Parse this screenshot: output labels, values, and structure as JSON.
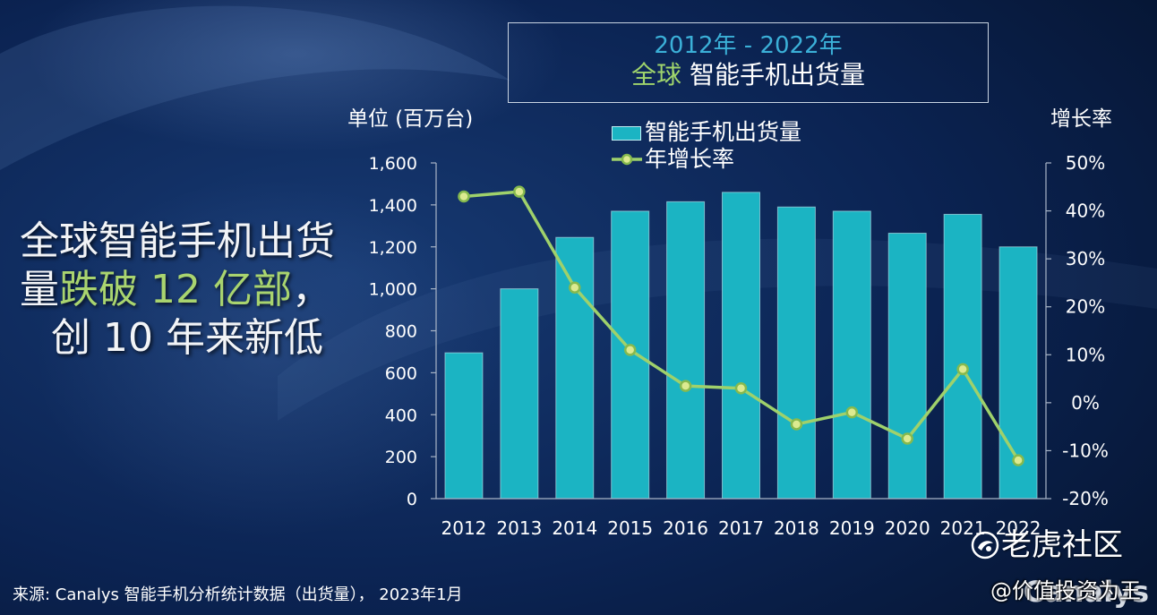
{
  "chart_data": {
    "type": "bar",
    "title": {
      "line1": "2012年 - 2022年",
      "line2_accent": "全球",
      "line2_main": "智能手机出货量"
    },
    "categories": [
      "2012",
      "2013",
      "2014",
      "2015",
      "2016",
      "2017",
      "2018",
      "2019",
      "2020",
      "2021",
      "2022"
    ],
    "series": [
      {
        "name": "智能手机出货量",
        "type": "bar",
        "axis": "left",
        "values": [
          695,
          1000,
          1245,
          1370,
          1415,
          1460,
          1390,
          1370,
          1265,
          1355,
          1200
        ]
      },
      {
        "name": "年增长率",
        "type": "line",
        "axis": "right",
        "values": [
          43,
          44,
          24,
          11,
          3.5,
          3,
          -4.5,
          -2,
          -7.5,
          7,
          -12
        ]
      }
    ],
    "ylabel": "单位 (百万台)",
    "y2label": "增长率",
    "ylim": [
      0,
      1600
    ],
    "y2lim": [
      -20,
      50
    ],
    "yticks": [
      0,
      200,
      400,
      600,
      800,
      1000,
      1200,
      1400,
      1600
    ],
    "ytick_labels": [
      "0",
      "200",
      "400",
      "600",
      "800",
      "1,000",
      "1,200",
      "1,400",
      "1,600"
    ],
    "y2ticks": [
      -20,
      -10,
      0,
      10,
      20,
      30,
      40,
      50
    ],
    "y2tick_labels": [
      "-20%",
      "-10%",
      "0%",
      "10%",
      "20%",
      "30%",
      "40%",
      "50%"
    ],
    "legend": "top-center",
    "grid": false
  },
  "headline": {
    "line1": "全球智能手机出货",
    "line2_start": "量",
    "line2_green": "跌破 12 亿部",
    "line2_end": "，",
    "line3": "创 10 年来新低"
  },
  "source": "来源: Canalys 智能手机分析统计数据（出货量）， 2023年1月",
  "watermarks": {
    "community": "老虎社区",
    "author": "@价值投资为王",
    "brand": "Canalys"
  },
  "colors": {
    "background": "#0b2150",
    "bar": "#1bb4c3",
    "line": "#9fd16b",
    "marker_fill": "#dcea90",
    "marker_stroke": "#86b94e",
    "title_year": "#3bb0d8",
    "accent_green": "#a6d36d"
  }
}
